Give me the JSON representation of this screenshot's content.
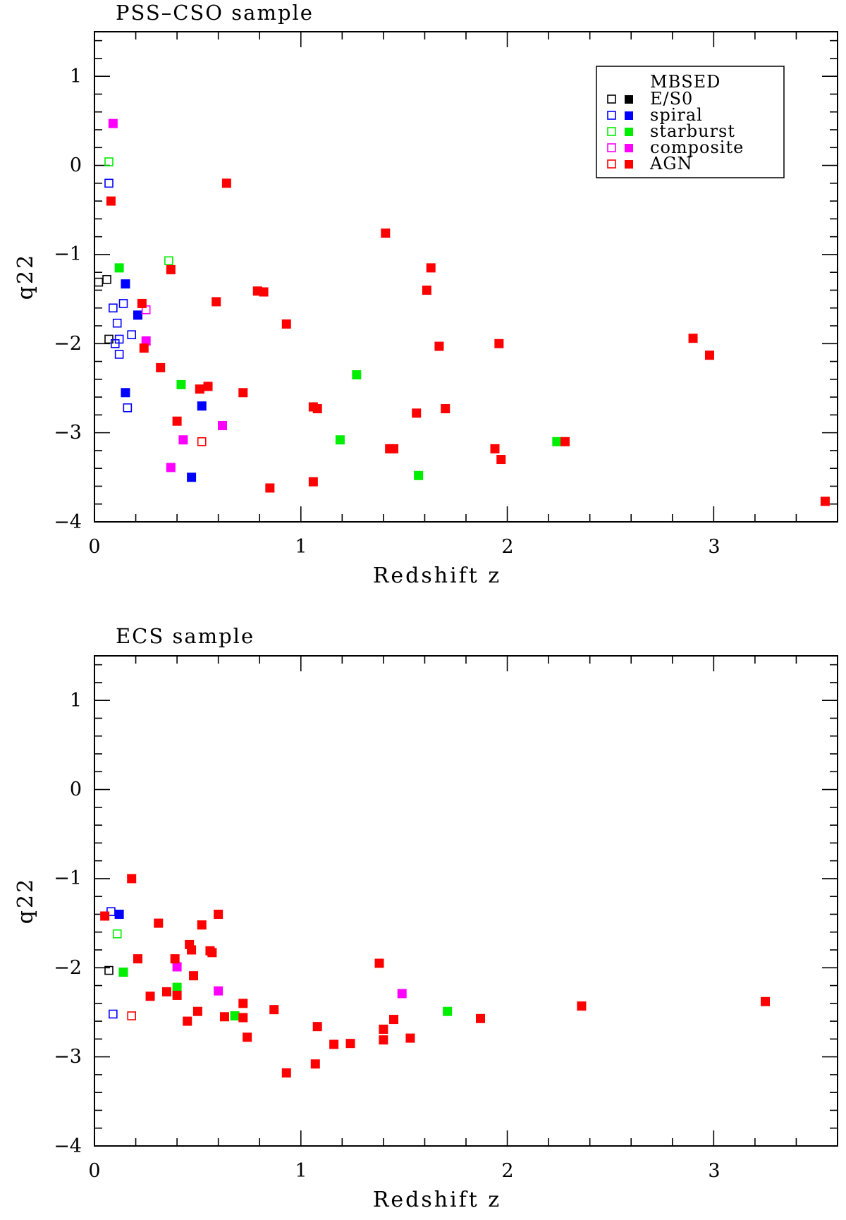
{
  "chart_data": [
    {
      "type": "scatter",
      "title": "PSS–CSO sample",
      "xlabel": "Redshift  z",
      "ylabel": "q22",
      "xlim": [
        0,
        3.6
      ],
      "ylim": [
        -4,
        1.5
      ],
      "xticks": [
        "0",
        "1",
        "2",
        "3"
      ],
      "yticks": [
        "1",
        "0",
        "−1",
        "−2",
        "−3",
        "−4"
      ],
      "legend": {
        "position": "top-right",
        "title": "MBSED",
        "entries": [
          {
            "label": "E/S0",
            "color": "#000000"
          },
          {
            "label": "spiral",
            "color": "#0000ff"
          },
          {
            "label": "starburst",
            "color": "#00ee00"
          },
          {
            "label": "composite",
            "color": "#ff00ff"
          },
          {
            "label": "AGN",
            "color": "#ff0000"
          }
        ]
      },
      "series": [
        {
          "name": "E/S0",
          "color": "#000000",
          "points": [
            {
              "x": 0.02,
              "y": -1.31,
              "open": true
            },
            {
              "x": 0.06,
              "y": -1.28,
              "open": true
            },
            {
              "x": 0.07,
              "y": -1.95,
              "open": true
            }
          ]
        },
        {
          "name": "spiral",
          "color": "#0000ff",
          "points": [
            {
              "x": 0.07,
              "y": -0.2,
              "open": true
            },
            {
              "x": 0.09,
              "y": -1.6,
              "open": true
            },
            {
              "x": 0.14,
              "y": -1.55,
              "open": true
            },
            {
              "x": 0.11,
              "y": -1.77,
              "open": true
            },
            {
              "x": 0.18,
              "y": -1.9,
              "open": true
            },
            {
              "x": 0.12,
              "y": -1.95,
              "open": true
            },
            {
              "x": 0.1,
              "y": -2.0,
              "open": true
            },
            {
              "x": 0.12,
              "y": -2.12,
              "open": true
            },
            {
              "x": 0.16,
              "y": -2.72,
              "open": true
            },
            {
              "x": 0.15,
              "y": -1.33,
              "open": false
            },
            {
              "x": 0.21,
              "y": -1.68,
              "open": false
            },
            {
              "x": 0.15,
              "y": -2.55,
              "open": false
            },
            {
              "x": 0.52,
              "y": -2.7,
              "open": false
            },
            {
              "x": 0.47,
              "y": -3.5,
              "open": false
            }
          ]
        },
        {
          "name": "starburst",
          "color": "#00ee00",
          "points": [
            {
              "x": 0.07,
              "y": 0.04,
              "open": true
            },
            {
              "x": 0.36,
              "y": -1.07,
              "open": true
            },
            {
              "x": 0.12,
              "y": -1.15,
              "open": false
            },
            {
              "x": 0.42,
              "y": -2.46,
              "open": false
            },
            {
              "x": 1.27,
              "y": -2.35,
              "open": false
            },
            {
              "x": 1.19,
              "y": -3.08,
              "open": false
            },
            {
              "x": 1.57,
              "y": -3.48,
              "open": false
            },
            {
              "x": 2.24,
              "y": -3.1,
              "open": false
            }
          ]
        },
        {
          "name": "composite",
          "color": "#ff00ff",
          "points": [
            {
              "x": 0.09,
              "y": 0.47,
              "open": false
            },
            {
              "x": 0.25,
              "y": -1.62,
              "open": true
            },
            {
              "x": 0.25,
              "y": -1.97,
              "open": false
            },
            {
              "x": 0.62,
              "y": -2.92,
              "open": false
            },
            {
              "x": 0.43,
              "y": -3.08,
              "open": false
            },
            {
              "x": 0.37,
              "y": -3.39,
              "open": false
            }
          ]
        },
        {
          "name": "AGN",
          "color": "#ff0000",
          "points": [
            {
              "x": 0.52,
              "y": -3.1,
              "open": true
            },
            {
              "x": 0.08,
              "y": -0.4,
              "open": false
            },
            {
              "x": 0.64,
              "y": -0.2,
              "open": false
            },
            {
              "x": 0.37,
              "y": -1.17,
              "open": false
            },
            {
              "x": 0.23,
              "y": -1.55,
              "open": false
            },
            {
              "x": 0.24,
              "y": -2.05,
              "open": false
            },
            {
              "x": 0.32,
              "y": -2.27,
              "open": false
            },
            {
              "x": 0.4,
              "y": -2.87,
              "open": false
            },
            {
              "x": 0.51,
              "y": -2.51,
              "open": false
            },
            {
              "x": 0.55,
              "y": -2.48,
              "open": false
            },
            {
              "x": 0.59,
              "y": -1.53,
              "open": false
            },
            {
              "x": 0.72,
              "y": -2.55,
              "open": false
            },
            {
              "x": 0.79,
              "y": -1.41,
              "open": false
            },
            {
              "x": 0.82,
              "y": -1.42,
              "open": false
            },
            {
              "x": 0.85,
              "y": -3.62,
              "open": false
            },
            {
              "x": 0.93,
              "y": -1.78,
              "open": false
            },
            {
              "x": 1.06,
              "y": -2.71,
              "open": false
            },
            {
              "x": 1.08,
              "y": -2.73,
              "open": false
            },
            {
              "x": 1.06,
              "y": -3.55,
              "open": false
            },
            {
              "x": 1.41,
              "y": -0.76,
              "open": false
            },
            {
              "x": 1.43,
              "y": -3.18,
              "open": false
            },
            {
              "x": 1.45,
              "y": -3.18,
              "open": false
            },
            {
              "x": 1.56,
              "y": -2.78,
              "open": false
            },
            {
              "x": 1.61,
              "y": -1.4,
              "open": false
            },
            {
              "x": 1.63,
              "y": -1.15,
              "open": false
            },
            {
              "x": 1.67,
              "y": -2.03,
              "open": false
            },
            {
              "x": 1.7,
              "y": -2.73,
              "open": false
            },
            {
              "x": 1.94,
              "y": -3.18,
              "open": false
            },
            {
              "x": 1.96,
              "y": -2.0,
              "open": false
            },
            {
              "x": 1.97,
              "y": -3.3,
              "open": false
            },
            {
              "x": 2.28,
              "y": -3.1,
              "open": false
            },
            {
              "x": 2.9,
              "y": -1.94,
              "open": false
            },
            {
              "x": 2.98,
              "y": -2.13,
              "open": false
            },
            {
              "x": 3.54,
              "y": -3.77,
              "open": false
            }
          ]
        }
      ]
    },
    {
      "type": "scatter",
      "title": "ECS sample",
      "xlabel": "Redshift  z",
      "ylabel": "q22",
      "xlim": [
        0,
        3.6
      ],
      "ylim": [
        -4,
        1.5
      ],
      "xticks": [
        "0",
        "1",
        "2",
        "3"
      ],
      "yticks": [
        "1",
        "0",
        "−1",
        "−2",
        "−3",
        "−4"
      ],
      "series": [
        {
          "name": "E/S0",
          "color": "#000000",
          "points": [
            {
              "x": 0.07,
              "y": -2.03,
              "open": true
            }
          ]
        },
        {
          "name": "spiral",
          "color": "#0000ff",
          "points": [
            {
              "x": 0.08,
              "y": -1.37,
              "open": true
            },
            {
              "x": 0.09,
              "y": -2.52,
              "open": true
            },
            {
              "x": 0.12,
              "y": -1.4,
              "open": false
            }
          ]
        },
        {
          "name": "starburst",
          "color": "#00ee00",
          "points": [
            {
              "x": 0.11,
              "y": -1.62,
              "open": true
            },
            {
              "x": 0.14,
              "y": -2.05,
              "open": false
            },
            {
              "x": 0.4,
              "y": -2.22,
              "open": false
            },
            {
              "x": 0.68,
              "y": -2.54,
              "open": false
            },
            {
              "x": 1.71,
              "y": -2.49,
              "open": false
            }
          ]
        },
        {
          "name": "composite",
          "color": "#ff00ff",
          "points": [
            {
              "x": 0.4,
              "y": -1.99,
              "open": false
            },
            {
              "x": 0.6,
              "y": -2.26,
              "open": false
            },
            {
              "x": 1.49,
              "y": -2.29,
              "open": false
            }
          ]
        },
        {
          "name": "AGN",
          "color": "#ff0000",
          "points": [
            {
              "x": 0.18,
              "y": -2.54,
              "open": true
            },
            {
              "x": 0.05,
              "y": -1.42,
              "open": false
            },
            {
              "x": 0.18,
              "y": -1.0,
              "open": false
            },
            {
              "x": 0.21,
              "y": -1.9,
              "open": false
            },
            {
              "x": 0.27,
              "y": -2.32,
              "open": false
            },
            {
              "x": 0.31,
              "y": -1.5,
              "open": false
            },
            {
              "x": 0.35,
              "y": -2.27,
              "open": false
            },
            {
              "x": 0.39,
              "y": -1.9,
              "open": false
            },
            {
              "x": 0.4,
              "y": -2.31,
              "open": false
            },
            {
              "x": 0.45,
              "y": -2.6,
              "open": false
            },
            {
              "x": 0.46,
              "y": -1.74,
              "open": false
            },
            {
              "x": 0.47,
              "y": -1.8,
              "open": false
            },
            {
              "x": 0.48,
              "y": -2.09,
              "open": false
            },
            {
              "x": 0.5,
              "y": -2.49,
              "open": false
            },
            {
              "x": 0.52,
              "y": -1.52,
              "open": false
            },
            {
              "x": 0.56,
              "y": -1.81,
              "open": false
            },
            {
              "x": 0.57,
              "y": -1.83,
              "open": false
            },
            {
              "x": 0.6,
              "y": -1.4,
              "open": false
            },
            {
              "x": 0.63,
              "y": -2.55,
              "open": false
            },
            {
              "x": 0.72,
              "y": -2.4,
              "open": false
            },
            {
              "x": 0.72,
              "y": -2.56,
              "open": false
            },
            {
              "x": 0.74,
              "y": -2.78,
              "open": false
            },
            {
              "x": 0.87,
              "y": -2.47,
              "open": false
            },
            {
              "x": 0.93,
              "y": -3.18,
              "open": false
            },
            {
              "x": 1.07,
              "y": -3.08,
              "open": false
            },
            {
              "x": 1.08,
              "y": -2.66,
              "open": false
            },
            {
              "x": 1.16,
              "y": -2.86,
              "open": false
            },
            {
              "x": 1.24,
              "y": -2.85,
              "open": false
            },
            {
              "x": 1.38,
              "y": -1.95,
              "open": false
            },
            {
              "x": 1.4,
              "y": -2.69,
              "open": false
            },
            {
              "x": 1.4,
              "y": -2.81,
              "open": false
            },
            {
              "x": 1.45,
              "y": -2.58,
              "open": false
            },
            {
              "x": 1.53,
              "y": -2.79,
              "open": false
            },
            {
              "x": 1.87,
              "y": -2.57,
              "open": false
            },
            {
              "x": 2.36,
              "y": -2.43,
              "open": false
            },
            {
              "x": 3.25,
              "y": -2.38,
              "open": false
            }
          ]
        }
      ]
    }
  ]
}
